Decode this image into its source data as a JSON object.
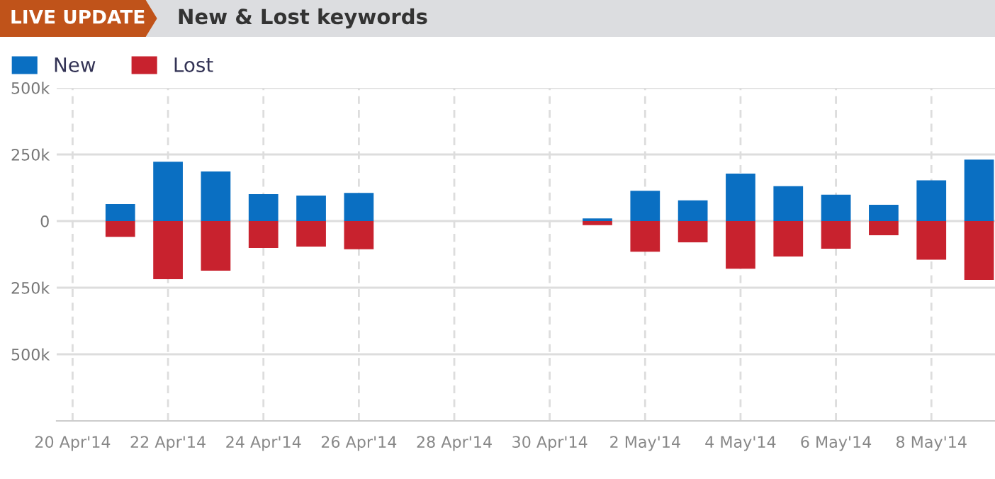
{
  "chart_data": {
    "type": "bar",
    "title": "New & Lost keywords",
    "annotations": [
      "LIVE UPDATE"
    ],
    "x": [
      "2014-04-21",
      "2014-04-22",
      "2014-04-23",
      "2014-04-24",
      "2014-04-25",
      "2014-04-26",
      "2014-05-01",
      "2014-05-02",
      "2014-05-03",
      "2014-05-04",
      "2014-05-05",
      "2014-05-06",
      "2014-05-07",
      "2014-05-08",
      "2014-05-09"
    ],
    "series": [
      {
        "name": "New",
        "color": "#0a6fc2",
        "values": [
          64000,
          223000,
          186000,
          101000,
          96000,
          106000,
          10000,
          114000,
          78000,
          178000,
          131000,
          99000,
          61000,
          153000,
          231000
        ]
      },
      {
        "name": "Lost",
        "color": "#c8222e",
        "values": [
          -59000,
          -218000,
          -186000,
          -101000,
          -96000,
          -106000,
          -15000,
          -115000,
          -80000,
          -179000,
          -133000,
          -104000,
          -53000,
          -145000,
          -221000
        ]
      }
    ],
    "ylim": [
      -750000,
      500000
    ],
    "yticks": [
      {
        "value": -500000,
        "label": "500k"
      },
      {
        "value": -250000,
        "label": "250k"
      },
      0,
      {
        "value": 250000,
        "label": "250k"
      },
      {
        "value": 500000,
        "label": "500k"
      }
    ],
    "xlim": [
      "2014-04-19T16:00",
      "2014-05-09T08:00"
    ],
    "xticks": [
      {
        "value": "2014-04-20",
        "label": "20 Apr'14"
      },
      {
        "value": "2014-04-22",
        "label": "22 Apr'14"
      },
      {
        "value": "2014-04-24",
        "label": "24 Apr'14"
      },
      {
        "value": "2014-04-26",
        "label": "26 Apr'14"
      },
      {
        "value": "2014-04-28",
        "label": "28 Apr'14"
      },
      {
        "value": "2014-04-30",
        "label": "30 Apr'14"
      },
      {
        "value": "2014-05-02",
        "label": "2 May'14"
      },
      {
        "value": "2014-05-04",
        "label": "4 May'14"
      },
      {
        "value": "2014-05-06",
        "label": "6 May'14"
      },
      {
        "value": "2014-05-08",
        "label": "8 May'14"
      }
    ],
    "stacked": true,
    "grid": true,
    "legend": "top left"
  }
}
